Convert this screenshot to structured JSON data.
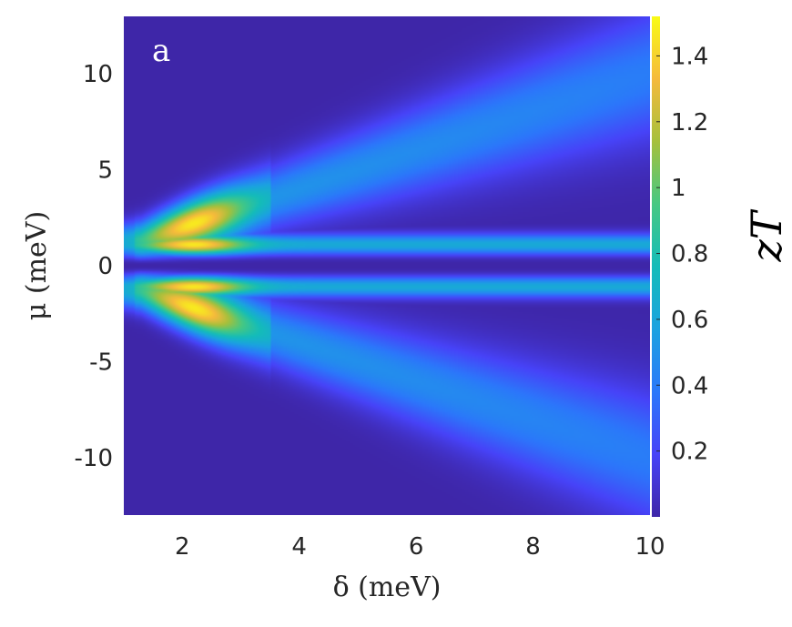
{
  "chart_data": {
    "type": "heatmap",
    "panel_label": "a",
    "xlabel": "δ (meV)",
    "ylabel": "μ (meV)",
    "colorbar_label": "zT",
    "xlim": [
      1,
      10
    ],
    "ylim": [
      -13,
      13
    ],
    "clim": [
      0,
      1.52
    ],
    "xticks": [
      2,
      4,
      6,
      8,
      10
    ],
    "xtick_labels": [
      "2",
      "4",
      "6",
      "8",
      "10"
    ],
    "yticks": [
      10,
      5,
      0,
      -5,
      -10
    ],
    "ytick_labels": [
      "10",
      "5",
      "0",
      "-5",
      "-10"
    ],
    "cbticks": [
      1.4,
      1.2,
      1,
      0.8,
      0.6,
      0.4,
      0.2
    ],
    "cbtick_labels": [
      "1.4",
      "1.2",
      "1",
      "0.8",
      "0.6",
      "0.4",
      "0.2"
    ],
    "colormap": "parula",
    "colormap_stops": [
      "#3e26a8",
      "#4743f8",
      "#2b78fa",
      "#1ba2e0",
      "#14bcb9",
      "#46c882",
      "#a6c03c",
      "#f5ba3c",
      "#f9fb15"
    ],
    "features": {
      "central_minimum_mu": 0,
      "peak_zT": 1.45,
      "peak_location": {
        "delta": 2.2,
        "mu": [
          1.2,
          -1.2
        ]
      },
      "outer_band_edge_mu_at_delta_10": [
        10,
        -10
      ],
      "plateau_band_mu": [
        1.1,
        -1.1
      ]
    }
  }
}
